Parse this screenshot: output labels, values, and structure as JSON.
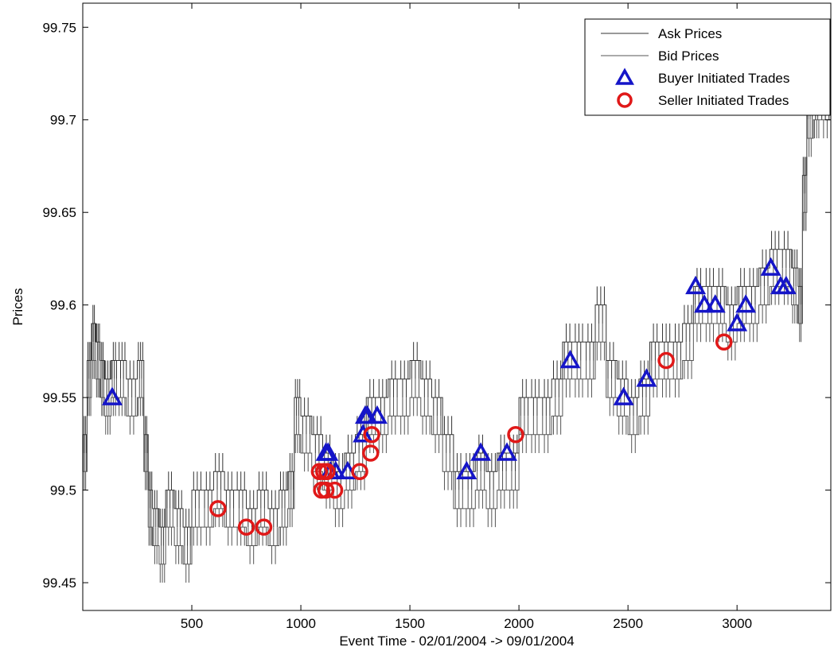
{
  "chart_data": {
    "type": "line",
    "title": "",
    "xlabel": "Event Time - 02/01/2004 -> 09/01/2004",
    "ylabel": "Prices",
    "xlim": [
      0,
      3430
    ],
    "ylim": [
      99.435,
      99.763
    ],
    "xticks": [
      500,
      1000,
      1500,
      2000,
      2500,
      3000
    ],
    "yticks": [
      99.45,
      99.5,
      99.55,
      99.6,
      99.65,
      99.7,
      99.75
    ],
    "grid": false,
    "legend_position": "top-right",
    "legend": [
      {
        "label": "Ask Prices",
        "marker": "line"
      },
      {
        "label": "Bid Prices",
        "marker": "line"
      },
      {
        "label": "Buyer Initiated Trades",
        "marker": "triangle"
      },
      {
        "label": "Seller Initiated Trades",
        "marker": "circle"
      }
    ],
    "colors": {
      "ask": "#333333",
      "bid": "#555555",
      "buyer": "#1515c8",
      "seller": "#e01818"
    },
    "series": [
      {
        "name": "Ask Prices",
        "x": [
          0,
          20,
          40,
          60,
          80,
          100,
          130,
          160,
          200,
          250,
          280,
          300,
          320,
          350,
          380,
          420,
          460,
          500,
          550,
          600,
          650,
          700,
          750,
          800,
          850,
          900,
          940,
          970,
          1000,
          1050,
          1100,
          1150,
          1200,
          1250,
          1300,
          1350,
          1400,
          1450,
          1500,
          1550,
          1600,
          1650,
          1700,
          1750,
          1800,
          1850,
          1900,
          1950,
          2000,
          2050,
          2100,
          2150,
          2200,
          2250,
          2300,
          2350,
          2400,
          2450,
          2500,
          2550,
          2600,
          2650,
          2700,
          2750,
          2800,
          2850,
          2900,
          2950,
          3000,
          3050,
          3100,
          3150,
          3200,
          3250,
          3280,
          3300,
          3320,
          3350,
          3380,
          3430
        ],
        "values": [
          99.53,
          99.57,
          99.59,
          99.58,
          99.57,
          99.56,
          99.57,
          99.57,
          99.56,
          99.57,
          99.53,
          99.5,
          99.49,
          99.48,
          99.5,
          99.49,
          99.48,
          99.5,
          99.5,
          99.51,
          99.5,
          99.5,
          99.49,
          99.5,
          99.49,
          99.5,
          99.51,
          99.55,
          99.54,
          99.53,
          99.52,
          99.51,
          99.52,
          99.53,
          99.55,
          99.55,
          99.56,
          99.56,
          99.57,
          99.56,
          99.55,
          99.53,
          99.51,
          99.51,
          99.52,
          99.51,
          99.52,
          99.52,
          99.55,
          99.55,
          99.55,
          99.56,
          99.58,
          99.58,
          99.58,
          99.6,
          99.57,
          99.56,
          99.55,
          99.56,
          99.58,
          99.58,
          99.58,
          99.59,
          99.61,
          99.61,
          99.61,
          99.6,
          99.61,
          99.61,
          99.62,
          99.63,
          99.63,
          99.62,
          99.61,
          99.67,
          99.71,
          99.71,
          99.71,
          99.71
        ]
      },
      {
        "name": "Bid Prices",
        "x": [
          0,
          20,
          40,
          60,
          80,
          100,
          130,
          160,
          200,
          250,
          280,
          300,
          320,
          350,
          380,
          420,
          460,
          500,
          550,
          600,
          650,
          700,
          750,
          800,
          850,
          900,
          940,
          970,
          1000,
          1050,
          1100,
          1150,
          1200,
          1250,
          1300,
          1350,
          1400,
          1450,
          1500,
          1550,
          1600,
          1650,
          1700,
          1750,
          1800,
          1850,
          1900,
          1950,
          2000,
          2050,
          2100,
          2150,
          2200,
          2250,
          2300,
          2350,
          2400,
          2450,
          2500,
          2550,
          2600,
          2650,
          2700,
          2750,
          2800,
          2850,
          2900,
          2950,
          3000,
          3050,
          3100,
          3150,
          3200,
          3250,
          3280,
          3300,
          3320,
          3350,
          3380,
          3430
        ],
        "values": [
          99.51,
          99.55,
          99.57,
          99.56,
          99.55,
          99.54,
          99.55,
          99.55,
          99.54,
          99.55,
          99.51,
          99.48,
          99.47,
          99.46,
          99.48,
          99.47,
          99.46,
          99.48,
          99.48,
          99.49,
          99.48,
          99.48,
          99.47,
          99.48,
          99.47,
          99.48,
          99.49,
          99.53,
          99.52,
          99.51,
          99.5,
          99.49,
          99.5,
          99.51,
          99.53,
          99.53,
          99.54,
          99.54,
          99.55,
          99.54,
          99.53,
          99.51,
          99.49,
          99.49,
          99.5,
          99.49,
          99.5,
          99.5,
          99.53,
          99.53,
          99.53,
          99.54,
          99.56,
          99.56,
          99.56,
          99.58,
          99.55,
          99.54,
          99.53,
          99.54,
          99.56,
          99.56,
          99.56,
          99.57,
          99.59,
          99.59,
          99.59,
          99.58,
          99.59,
          99.59,
          99.6,
          99.61,
          99.61,
          99.6,
          99.59,
          99.65,
          99.69,
          99.7,
          99.7,
          99.7
        ]
      },
      {
        "name": "Buyer Initiated Trades",
        "x": [
          135,
          1115,
          1125,
          1135,
          1160,
          1215,
          1285,
          1295,
          1305,
          1350,
          1760,
          1825,
          1945,
          2235,
          2480,
          2585,
          2810,
          2850,
          2900,
          3000,
          3040,
          3155,
          3200,
          3225
        ],
        "values": [
          99.55,
          99.52,
          99.52,
          99.51,
          99.51,
          99.51,
          99.53,
          99.54,
          99.54,
          99.54,
          99.51,
          99.52,
          99.52,
          99.57,
          99.55,
          99.56,
          99.61,
          99.6,
          99.6,
          99.59,
          99.6,
          99.62,
          99.61,
          99.61
        ]
      },
      {
        "name": "Seller Initiated Trades",
        "x": [
          620,
          750,
          830,
          1085,
          1095,
          1105,
          1115,
          1120,
          1155,
          1270,
          1320,
          1325,
          1985,
          2675,
          2940
        ],
        "values": [
          99.49,
          99.48,
          99.48,
          99.51,
          99.5,
          99.51,
          99.5,
          99.51,
          99.5,
          99.51,
          99.52,
          99.53,
          99.53,
          99.57,
          99.58
        ]
      }
    ]
  }
}
